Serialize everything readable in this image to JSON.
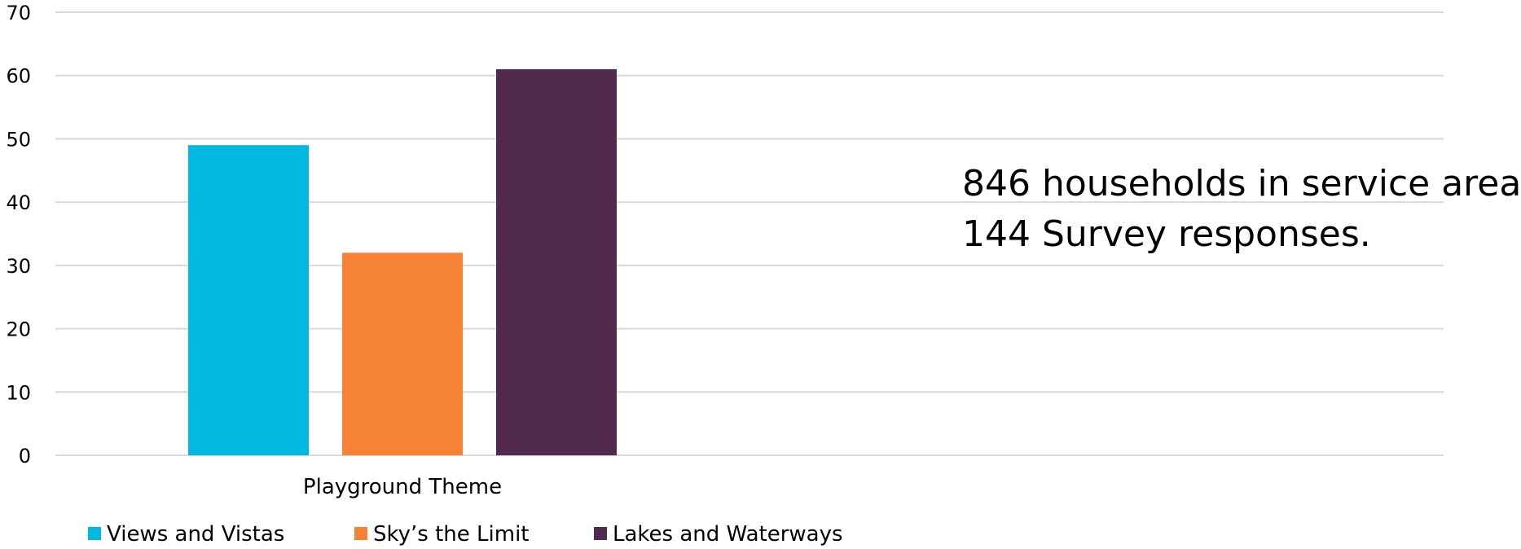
{
  "chart_data": {
    "type": "bar",
    "categories": [
      "Playground Theme"
    ],
    "series": [
      {
        "name": "Views and Vistas",
        "values": [
          49
        ],
        "color": "#00B8E0"
      },
      {
        "name": "Sky’s the Limit",
        "values": [
          32
        ],
        "color": "#F58235"
      },
      {
        "name": "Lakes and Waterways",
        "values": [
          61
        ],
        "color": "#522A4E"
      }
    ],
    "title": "",
    "xlabel": "",
    "ylabel": "",
    "ylim": [
      0,
      70
    ],
    "yticks": [
      "0",
      "10",
      "20",
      "30",
      "40",
      "50",
      "60",
      "70"
    ],
    "grid": true,
    "legend": "bottom-left",
    "annotations": [
      "846 households in service area",
      "144 Survey responses."
    ]
  },
  "colors": {
    "gridline": "#D9D9D9",
    "text": "#000000"
  }
}
